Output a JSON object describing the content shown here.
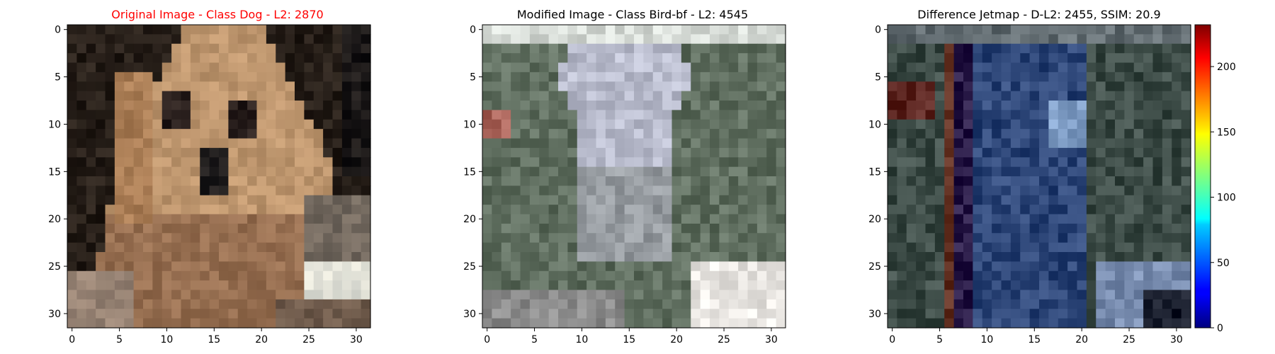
{
  "panels": [
    {
      "title": "Original Image - Class Dog - L2: 2870",
      "title_color": "#ff0000",
      "x_ticks": [
        "0",
        "5",
        "10",
        "15",
        "20",
        "25",
        "30"
      ],
      "y_ticks": [
        "0",
        "5",
        "10",
        "15",
        "20",
        "25",
        "30"
      ]
    },
    {
      "title": "Modified Image - Class Bird-bf - L2: 4545",
      "title_color": "#000000",
      "x_ticks": [
        "0",
        "5",
        "10",
        "15",
        "20",
        "25",
        "30"
      ],
      "y_ticks": [
        "0",
        "5",
        "10",
        "15",
        "20",
        "25",
        "30"
      ]
    },
    {
      "title": "Difference Jetmap - D-L2: 2455, SSIM: 20.9",
      "title_color": "#000000",
      "x_ticks": [
        "0",
        "5",
        "10",
        "15",
        "20",
        "25",
        "30"
      ],
      "y_ticks": [
        "0",
        "5",
        "10",
        "15",
        "20",
        "25",
        "30"
      ]
    }
  ],
  "colorbar": {
    "ticks": [
      "0",
      "50",
      "100",
      "150",
      "200"
    ],
    "range": [
      0,
      232
    ],
    "colormap": "jet"
  }
}
